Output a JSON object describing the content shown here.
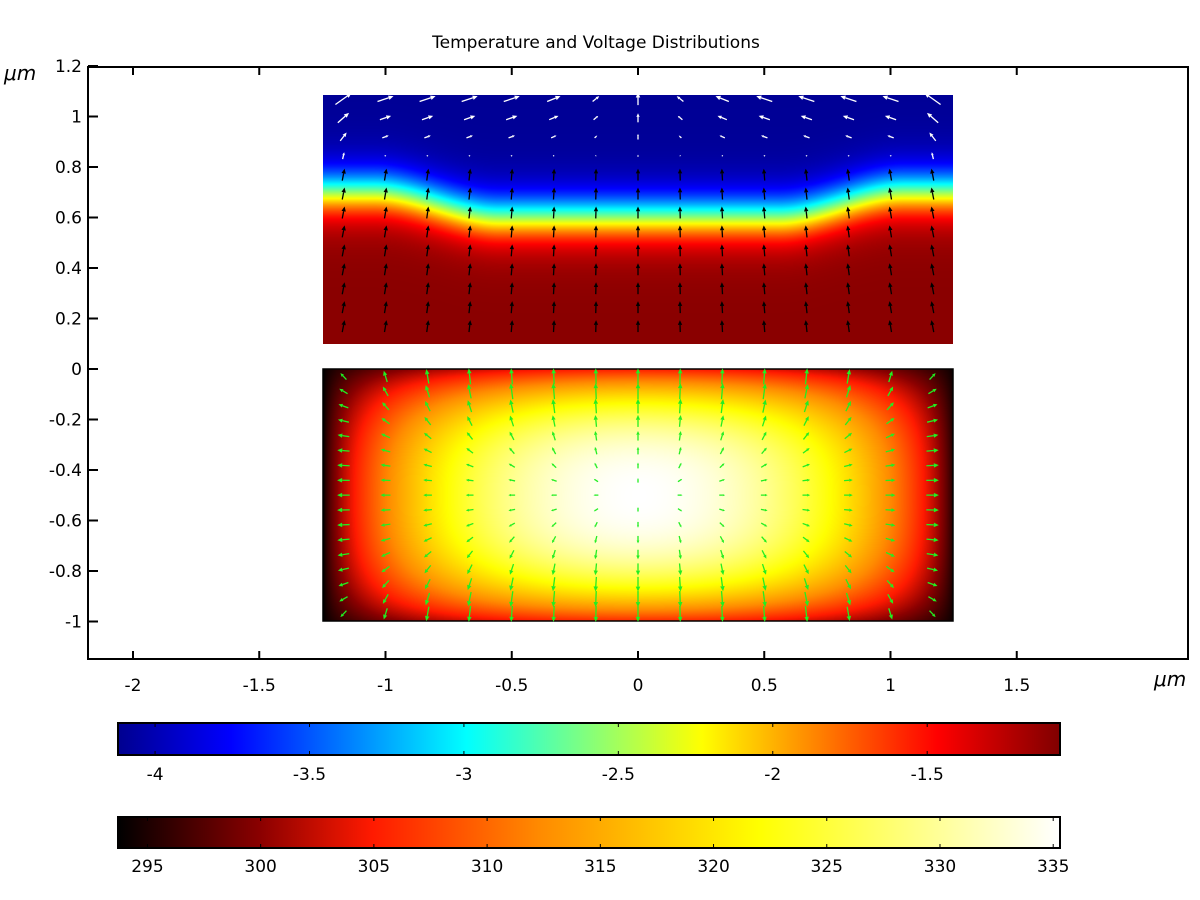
{
  "chart_data": {
    "type": "heatmap",
    "title": "Temperature and Voltage Distributions",
    "xlabel": "μm",
    "ylabel": "μm",
    "xlim": [
      -2.18,
      2.18
    ],
    "ylim": [
      -1.15,
      1.2
    ],
    "x_ticks": [
      "-2",
      "-1.5",
      "-1",
      "-0.5",
      "0",
      "0.5",
      "1",
      "1.5"
    ],
    "x_tick_values": [
      -2,
      -1.5,
      -1,
      -0.5,
      0,
      0.5,
      1,
      1.5
    ],
    "y_ticks": [
      "1.2",
      "1",
      "0.8",
      "0.6",
      "0.4",
      "0.2",
      "0",
      "-0.2",
      "-0.4",
      "-0.6",
      "-0.8",
      "-1"
    ],
    "y_tick_values": [
      1.2,
      1,
      0.8,
      0.6,
      0.4,
      0.2,
      0,
      -0.2,
      -0.4,
      -0.6,
      -0.8,
      -1
    ],
    "domains": [
      {
        "name": "voltage",
        "x_range": [
          -1.25,
          1.25
        ],
        "y_range": [
          0.1,
          1.1
        ],
        "arrows": "current density (white/black)"
      },
      {
        "name": "temperature",
        "x_range": [
          -1.25,
          1.25
        ],
        "y_range": [
          -1,
          0
        ],
        "arrows": "heat flux (green)"
      }
    ],
    "colorbars": [
      {
        "name": "voltage",
        "range": [
          -4.12,
          -1.07
        ],
        "ticks": [
          "-4",
          "-3.5",
          "-3",
          "-2.5",
          "-2",
          "-1.5"
        ],
        "tick_values": [
          -4,
          -3.5,
          -3,
          -2.5,
          -2,
          -1.5
        ],
        "colormap": [
          "#00008f",
          "#0000ff",
          "#00ffff",
          "#ffff00",
          "#ff0000",
          "#800000"
        ]
      },
      {
        "name": "temperature",
        "range": [
          293.7,
          335.3
        ],
        "ticks": [
          "295",
          "300",
          "305",
          "310",
          "315",
          "320",
          "325",
          "330",
          "335"
        ],
        "tick_values": [
          295,
          300,
          305,
          310,
          315,
          320,
          325,
          330,
          335
        ],
        "colormap": [
          "#000000",
          "#8a0000",
          "#ff1a00",
          "#ff8c00",
          "#ffff00",
          "#ffffff"
        ]
      }
    ],
    "arrow_colors": {
      "current_top": "#ffffff",
      "current_bottom": "#000000",
      "heat_flux": "#22ee22"
    }
  }
}
